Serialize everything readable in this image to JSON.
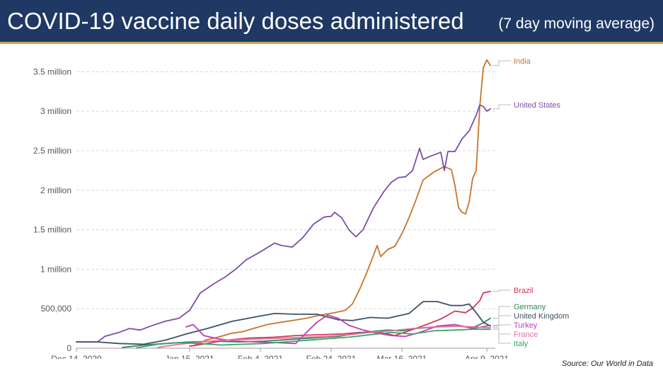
{
  "header": {
    "title": "COVID-19 vaccine daily doses administered",
    "subtitle": "(7 day moving average)"
  },
  "source_text": "Source: Our World in Data",
  "chart_data": {
    "type": "line",
    "title": "COVID-19 vaccine daily doses administered",
    "subtitle": "(7 day moving average)",
    "xlabel": "",
    "ylabel": "",
    "x_range": [
      "2020-12-14",
      "2021-04-10"
    ],
    "ylim": [
      0,
      3700000
    ],
    "y_ticks": [
      0,
      500000,
      1000000,
      1500000,
      2000000,
      2500000,
      3000000,
      3500000
    ],
    "y_tick_labels": [
      "0",
      "500,000",
      "1 million",
      "1.5 million",
      "2 million",
      "2.5 million",
      "3 million",
      "3.5 million"
    ],
    "x_ticks": [
      "2020-12-14",
      "2021-01-15",
      "2021-02-04",
      "2021-02-24",
      "2021-03-16",
      "2021-04-09"
    ],
    "x_tick_labels": [
      "Dec 14, 2020",
      "Jan 15, 2021",
      "Feb 4, 2021",
      "Feb 24, 2021",
      "Mar 16, 2021",
      "Apr 9, 2021"
    ],
    "grid": true,
    "legend": "right-end labels",
    "series": [
      {
        "name": "India",
        "color": "#c8742a",
        "points": [
          [
            "2021-01-16",
            30000
          ],
          [
            "2021-01-20",
            110000
          ],
          [
            "2021-01-23",
            140000
          ],
          [
            "2021-01-27",
            190000
          ],
          [
            "2021-01-30",
            210000
          ],
          [
            "2021-02-02",
            250000
          ],
          [
            "2021-02-06",
            300000
          ],
          [
            "2021-02-10",
            330000
          ],
          [
            "2021-02-13",
            350000
          ],
          [
            "2021-02-17",
            380000
          ],
          [
            "2021-02-21",
            420000
          ],
          [
            "2021-02-25",
            450000
          ],
          [
            "2021-02-28",
            480000
          ],
          [
            "2021-03-02",
            560000
          ],
          [
            "2021-03-04",
            740000
          ],
          [
            "2021-03-06",
            950000
          ],
          [
            "2021-03-08",
            1180000
          ],
          [
            "2021-03-09",
            1300000
          ],
          [
            "2021-03-10",
            1160000
          ],
          [
            "2021-03-12",
            1250000
          ],
          [
            "2021-03-14",
            1290000
          ],
          [
            "2021-03-16",
            1450000
          ],
          [
            "2021-03-18",
            1650000
          ],
          [
            "2021-03-20",
            1880000
          ],
          [
            "2021-03-22",
            2130000
          ],
          [
            "2021-03-25",
            2230000
          ],
          [
            "2021-03-28",
            2300000
          ],
          [
            "2021-03-30",
            2260000
          ],
          [
            "2021-03-31",
            2060000
          ],
          [
            "2021-04-01",
            1780000
          ],
          [
            "2021-04-02",
            1720000
          ],
          [
            "2021-04-03",
            1700000
          ],
          [
            "2021-04-04",
            1850000
          ],
          [
            "2021-04-05",
            2150000
          ],
          [
            "2021-04-06",
            2250000
          ],
          [
            "2021-04-07",
            3050000
          ],
          [
            "2021-04-08",
            3550000
          ],
          [
            "2021-04-09",
            3650000
          ],
          [
            "2021-04-10",
            3580000
          ]
        ]
      },
      {
        "name": "United States",
        "color": "#7b4fa6",
        "points": [
          [
            "2020-12-14",
            80000
          ],
          [
            "2020-12-20",
            80000
          ],
          [
            "2020-12-22",
            150000
          ],
          [
            "2020-12-26",
            200000
          ],
          [
            "2020-12-29",
            250000
          ],
          [
            "2021-01-01",
            230000
          ],
          [
            "2021-01-04",
            280000
          ],
          [
            "2021-01-08",
            340000
          ],
          [
            "2021-01-12",
            380000
          ],
          [
            "2021-01-15",
            480000
          ],
          [
            "2021-01-18",
            700000
          ],
          [
            "2021-01-22",
            820000
          ],
          [
            "2021-01-25",
            900000
          ],
          [
            "2021-01-28",
            1000000
          ],
          [
            "2021-01-31",
            1120000
          ],
          [
            "2021-02-04",
            1220000
          ],
          [
            "2021-02-08",
            1330000
          ],
          [
            "2021-02-10",
            1300000
          ],
          [
            "2021-02-13",
            1280000
          ],
          [
            "2021-02-16",
            1400000
          ],
          [
            "2021-02-19",
            1570000
          ],
          [
            "2021-02-22",
            1660000
          ],
          [
            "2021-02-24",
            1670000
          ],
          [
            "2021-02-25",
            1720000
          ],
          [
            "2021-02-27",
            1650000
          ],
          [
            "2021-03-01",
            1500000
          ],
          [
            "2021-03-03",
            1410000
          ],
          [
            "2021-03-05",
            1500000
          ],
          [
            "2021-03-08",
            1780000
          ],
          [
            "2021-03-11",
            1990000
          ],
          [
            "2021-03-13",
            2100000
          ],
          [
            "2021-03-15",
            2160000
          ],
          [
            "2021-03-17",
            2170000
          ],
          [
            "2021-03-19",
            2250000
          ],
          [
            "2021-03-21",
            2530000
          ],
          [
            "2021-03-22",
            2390000
          ],
          [
            "2021-03-24",
            2430000
          ],
          [
            "2021-03-27",
            2480000
          ],
          [
            "2021-03-28",
            2250000
          ],
          [
            "2021-03-29",
            2490000
          ],
          [
            "2021-03-31",
            2490000
          ],
          [
            "2021-04-02",
            2650000
          ],
          [
            "2021-04-04",
            2750000
          ],
          [
            "2021-04-06",
            2950000
          ],
          [
            "2021-04-07",
            3080000
          ],
          [
            "2021-04-08",
            3060000
          ],
          [
            "2021-04-09",
            3000000
          ],
          [
            "2021-04-10",
            3030000
          ]
        ]
      },
      {
        "name": "Brazil",
        "color": "#d6365c",
        "points": [
          [
            "2021-01-15",
            25000
          ],
          [
            "2021-01-20",
            60000
          ],
          [
            "2021-01-25",
            100000
          ],
          [
            "2021-02-01",
            130000
          ],
          [
            "2021-02-08",
            140000
          ],
          [
            "2021-02-14",
            160000
          ],
          [
            "2021-02-20",
            170000
          ],
          [
            "2021-02-27",
            180000
          ],
          [
            "2021-03-04",
            200000
          ],
          [
            "2021-03-10",
            200000
          ],
          [
            "2021-03-14",
            160000
          ],
          [
            "2021-03-18",
            220000
          ],
          [
            "2021-03-23",
            300000
          ],
          [
            "2021-03-27",
            370000
          ],
          [
            "2021-03-31",
            470000
          ],
          [
            "2021-04-03",
            450000
          ],
          [
            "2021-04-05",
            510000
          ],
          [
            "2021-04-07",
            600000
          ],
          [
            "2021-04-08",
            700000
          ],
          [
            "2021-04-10",
            720000
          ]
        ]
      },
      {
        "name": "Germany",
        "color": "#2a8a57",
        "points": [
          [
            "2020-12-27",
            10000
          ],
          [
            "2021-01-02",
            40000
          ],
          [
            "2021-01-08",
            60000
          ],
          [
            "2021-01-15",
            80000
          ],
          [
            "2021-01-22",
            90000
          ],
          [
            "2021-01-29",
            80000
          ],
          [
            "2021-02-05",
            90000
          ],
          [
            "2021-02-12",
            110000
          ],
          [
            "2021-02-19",
            130000
          ],
          [
            "2021-02-26",
            150000
          ],
          [
            "2021-03-05",
            200000
          ],
          [
            "2021-03-12",
            230000
          ],
          [
            "2021-03-16",
            220000
          ],
          [
            "2021-03-20",
            250000
          ],
          [
            "2021-03-26",
            270000
          ],
          [
            "2021-04-01",
            280000
          ],
          [
            "2021-04-05",
            260000
          ],
          [
            "2021-04-08",
            320000
          ],
          [
            "2021-04-10",
            380000
          ]
        ]
      },
      {
        "name": "United Kingdom",
        "color": "#3f5166",
        "points": [
          [
            "2020-12-14",
            80000
          ],
          [
            "2020-12-20",
            80000
          ],
          [
            "2020-12-26",
            60000
          ],
          [
            "2021-01-02",
            50000
          ],
          [
            "2021-01-08",
            100000
          ],
          [
            "2021-01-14",
            180000
          ],
          [
            "2021-01-20",
            250000
          ],
          [
            "2021-01-27",
            340000
          ],
          [
            "2021-02-03",
            400000
          ],
          [
            "2021-02-08",
            440000
          ],
          [
            "2021-02-14",
            430000
          ],
          [
            "2021-02-20",
            430000
          ],
          [
            "2021-02-26",
            360000
          ],
          [
            "2021-03-02",
            350000
          ],
          [
            "2021-03-07",
            390000
          ],
          [
            "2021-03-12",
            380000
          ],
          [
            "2021-03-18",
            440000
          ],
          [
            "2021-03-22",
            590000
          ],
          [
            "2021-03-26",
            590000
          ],
          [
            "2021-03-30",
            540000
          ],
          [
            "2021-04-02",
            540000
          ],
          [
            "2021-04-04",
            560000
          ],
          [
            "2021-04-06",
            450000
          ],
          [
            "2021-04-08",
            330000
          ],
          [
            "2021-04-10",
            280000
          ]
        ]
      },
      {
        "name": "Turkey",
        "color": "#c13db5",
        "points": [
          [
            "2021-01-14",
            270000
          ],
          [
            "2021-01-16",
            300000
          ],
          [
            "2021-01-19",
            160000
          ],
          [
            "2021-01-23",
            120000
          ],
          [
            "2021-01-28",
            90000
          ],
          [
            "2021-02-03",
            80000
          ],
          [
            "2021-02-09",
            70000
          ],
          [
            "2021-02-14",
            60000
          ],
          [
            "2021-02-17",
            200000
          ],
          [
            "2021-02-20",
            330000
          ],
          [
            "2021-02-23",
            420000
          ],
          [
            "2021-02-26",
            380000
          ],
          [
            "2021-03-01",
            290000
          ],
          [
            "2021-03-05",
            230000
          ],
          [
            "2021-03-09",
            190000
          ],
          [
            "2021-03-13",
            160000
          ],
          [
            "2021-03-17",
            150000
          ],
          [
            "2021-03-21",
            200000
          ],
          [
            "2021-03-26",
            280000
          ],
          [
            "2021-03-31",
            300000
          ],
          [
            "2021-04-05",
            250000
          ],
          [
            "2021-04-10",
            290000
          ]
        ]
      },
      {
        "name": "France",
        "color": "#e5709a",
        "points": [
          [
            "2021-01-06",
            10000
          ],
          [
            "2021-01-12",
            50000
          ],
          [
            "2021-01-18",
            80000
          ],
          [
            "2021-01-24",
            100000
          ],
          [
            "2021-01-30",
            110000
          ],
          [
            "2021-02-05",
            120000
          ],
          [
            "2021-02-11",
            130000
          ],
          [
            "2021-02-17",
            140000
          ],
          [
            "2021-02-23",
            150000
          ],
          [
            "2021-03-01",
            170000
          ],
          [
            "2021-03-07",
            200000
          ],
          [
            "2021-03-13",
            220000
          ],
          [
            "2021-03-19",
            250000
          ],
          [
            "2021-03-25",
            270000
          ],
          [
            "2021-03-31",
            280000
          ],
          [
            "2021-04-05",
            270000
          ],
          [
            "2021-04-10",
            260000
          ]
        ]
      },
      {
        "name": "Italy",
        "color": "#3aa56c",
        "points": [
          [
            "2020-12-31",
            5000
          ],
          [
            "2021-01-06",
            50000
          ],
          [
            "2021-01-12",
            70000
          ],
          [
            "2021-01-18",
            60000
          ],
          [
            "2021-01-24",
            40000
          ],
          [
            "2021-01-30",
            50000
          ],
          [
            "2021-02-05",
            60000
          ],
          [
            "2021-02-11",
            80000
          ],
          [
            "2021-02-17",
            100000
          ],
          [
            "2021-02-23",
            120000
          ],
          [
            "2021-03-01",
            140000
          ],
          [
            "2021-03-07",
            170000
          ],
          [
            "2021-03-13",
            200000
          ],
          [
            "2021-03-19",
            180000
          ],
          [
            "2021-03-25",
            220000
          ],
          [
            "2021-03-31",
            230000
          ],
          [
            "2021-04-05",
            240000
          ],
          [
            "2021-04-10",
            240000
          ]
        ]
      }
    ]
  }
}
